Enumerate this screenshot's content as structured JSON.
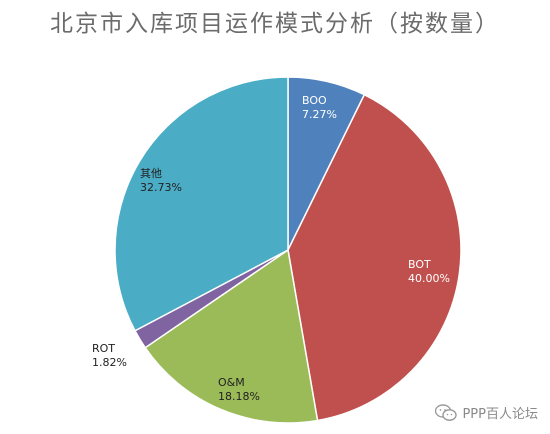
{
  "chart_data": {
    "type": "pie",
    "title": "北京市入库项目运作模式分析（按数量）",
    "slices": [
      {
        "label": "BOO",
        "value": 7.27,
        "value_text": "7.27%",
        "color": "#4f81bd"
      },
      {
        "label": "BOT",
        "value": 40.0,
        "value_text": "40.00%",
        "color": "#c0504d"
      },
      {
        "label": "O&M",
        "value": 18.18,
        "value_text": "18.18%",
        "color": "#9bbb59"
      },
      {
        "label": "ROT",
        "value": 1.82,
        "value_text": "1.82%",
        "color": "#8064a2"
      },
      {
        "label": "其他",
        "value": 32.73,
        "value_text": "32.73%",
        "color": "#4bacc6"
      }
    ],
    "start_angle_deg": 0,
    "direction": "clockwise",
    "legend": "none"
  },
  "watermark": {
    "text": "PPP百人论坛",
    "icon": "wechat-icon"
  }
}
